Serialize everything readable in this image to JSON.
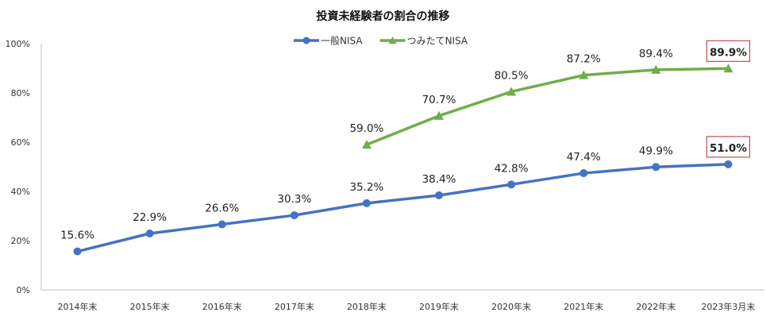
{
  "chart_data": {
    "type": "line",
    "title": "投資未経験者の割合の推移",
    "categories": [
      "2014年末",
      "2015年末",
      "2016年末",
      "2017年末",
      "2018年末",
      "2019年末",
      "2020年末",
      "2021年末",
      "2022年末",
      "2023年3月末"
    ],
    "ylim": [
      0,
      100
    ],
    "yticks": [
      "0%",
      "20%",
      "40%",
      "60%",
      "80%",
      "100%"
    ],
    "grid": false,
    "legend": "top",
    "series": [
      {
        "name": "一般NISA",
        "color": "#4472C4",
        "marker": "circle",
        "values": [
          15.6,
          22.9,
          26.6,
          30.3,
          35.2,
          38.4,
          42.8,
          47.4,
          49.9,
          51.0
        ],
        "labels": [
          "15.6%",
          "22.9%",
          "26.6%",
          "30.3%",
          "35.2%",
          "38.4%",
          "42.8%",
          "47.4%",
          "49.9%",
          "51.0%"
        ]
      },
      {
        "name": "つみたてNISA",
        "color": "#70AD47",
        "marker": "triangle",
        "values": [
          null,
          null,
          null,
          null,
          59.0,
          70.7,
          80.5,
          87.2,
          89.4,
          89.9
        ],
        "labels": [
          null,
          null,
          null,
          null,
          "59.0%",
          "70.7%",
          "80.5%",
          "87.2%",
          "89.4%",
          "89.9%"
        ]
      }
    ],
    "highlight_color": "#C0504D"
  }
}
